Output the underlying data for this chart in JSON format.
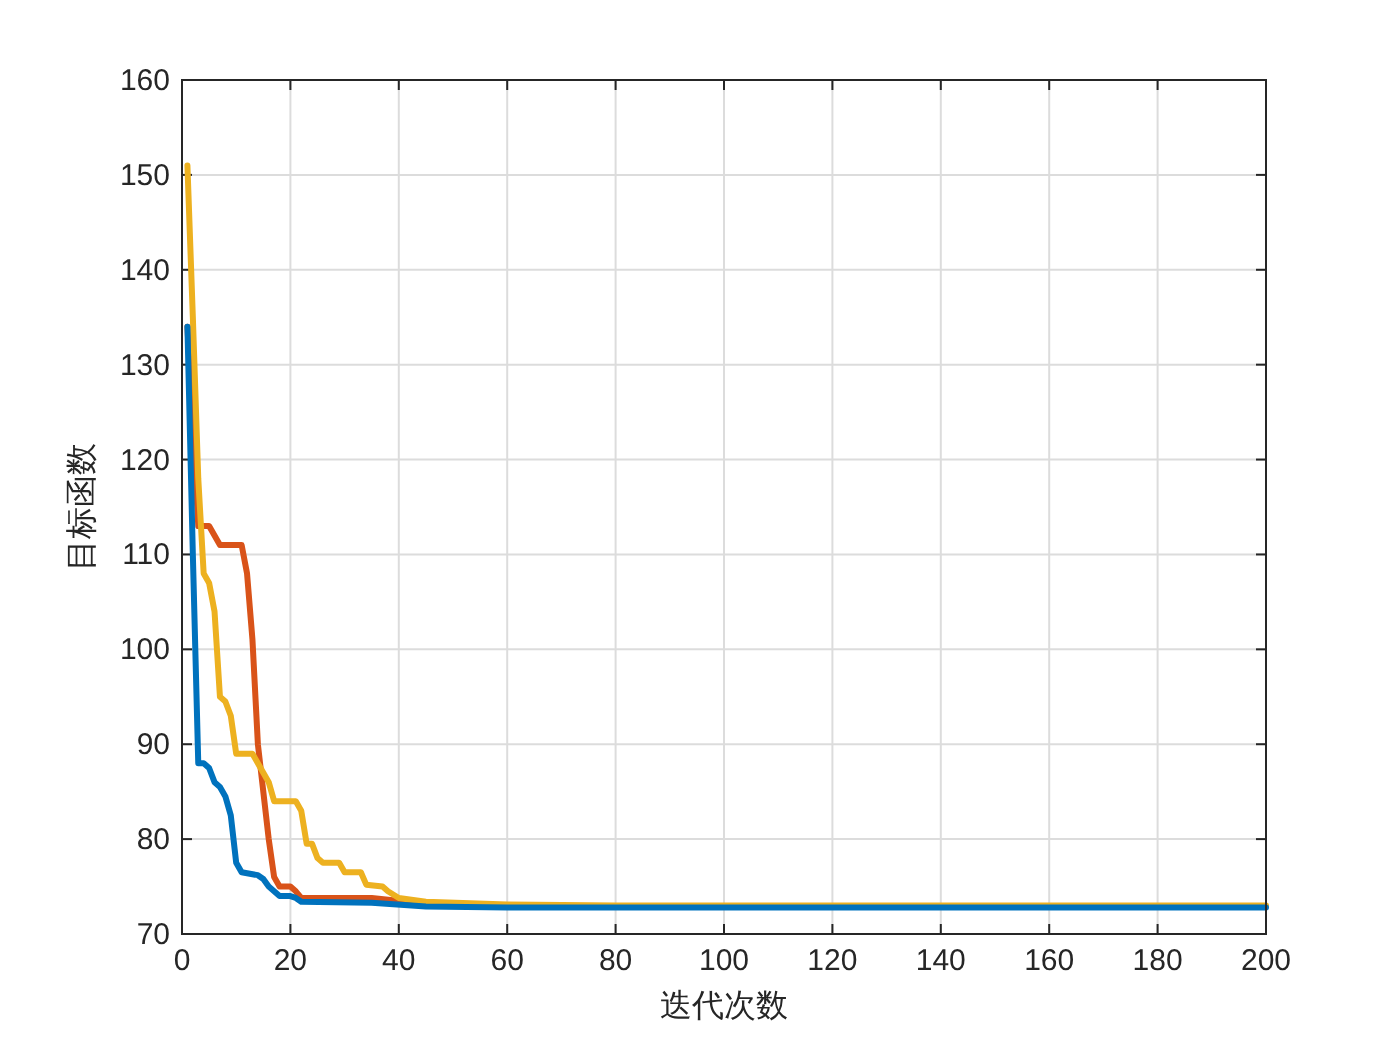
{
  "chart_data": {
    "type": "line",
    "xlabel": "迭代次数",
    "ylabel": "目标函数",
    "xlim": [
      0,
      200
    ],
    "ylim": [
      70,
      160
    ],
    "xticks": [
      0,
      20,
      40,
      60,
      80,
      100,
      120,
      140,
      160,
      180,
      200
    ],
    "yticks": [
      70,
      80,
      90,
      100,
      110,
      120,
      130,
      140,
      150,
      160
    ],
    "grid": true,
    "marker": "none",
    "line_style": "solid",
    "series": [
      {
        "color": "#d95319",
        "x": [
          1,
          3,
          5,
          6,
          7,
          11,
          12,
          13,
          14,
          16,
          17,
          18,
          20,
          21,
          22,
          35,
          45
        ],
        "values": [
          134,
          113,
          113,
          112,
          111,
          111,
          108,
          101,
          90,
          80,
          76,
          75,
          75,
          74.5,
          73.8,
          73.8,
          73.2
        ]
      },
      {
        "color": "#edb120",
        "x": [
          1,
          2,
          3,
          4,
          5,
          6,
          7,
          8,
          9,
          10,
          13,
          14,
          15,
          16,
          17,
          21,
          22,
          23,
          24,
          25,
          26,
          29,
          30,
          33,
          34,
          37,
          38,
          40,
          45,
          60,
          80,
          200
        ],
        "values": [
          151,
          135,
          118,
          108,
          107,
          104,
          95,
          94.5,
          93,
          89,
          89,
          88,
          87,
          86,
          84,
          84,
          83,
          79.5,
          79.5,
          78,
          77.5,
          77.5,
          76.5,
          76.5,
          75.2,
          75,
          74.5,
          73.8,
          73.4,
          73.1,
          73.0,
          73.0
        ]
      },
      {
        "color": "#0072bd",
        "x": [
          1,
          2,
          3,
          4,
          5,
          6,
          7,
          8,
          9,
          10,
          11,
          14,
          15,
          16,
          17,
          18,
          20,
          21,
          22,
          35,
          45,
          60,
          200
        ],
        "values": [
          134,
          110,
          88,
          88,
          87.5,
          86,
          85.5,
          84.5,
          82.5,
          77.5,
          76.5,
          76.2,
          75.8,
          75,
          74.5,
          74,
          74,
          73.8,
          73.4,
          73.3,
          72.9,
          72.8,
          72.8
        ]
      }
    ]
  }
}
